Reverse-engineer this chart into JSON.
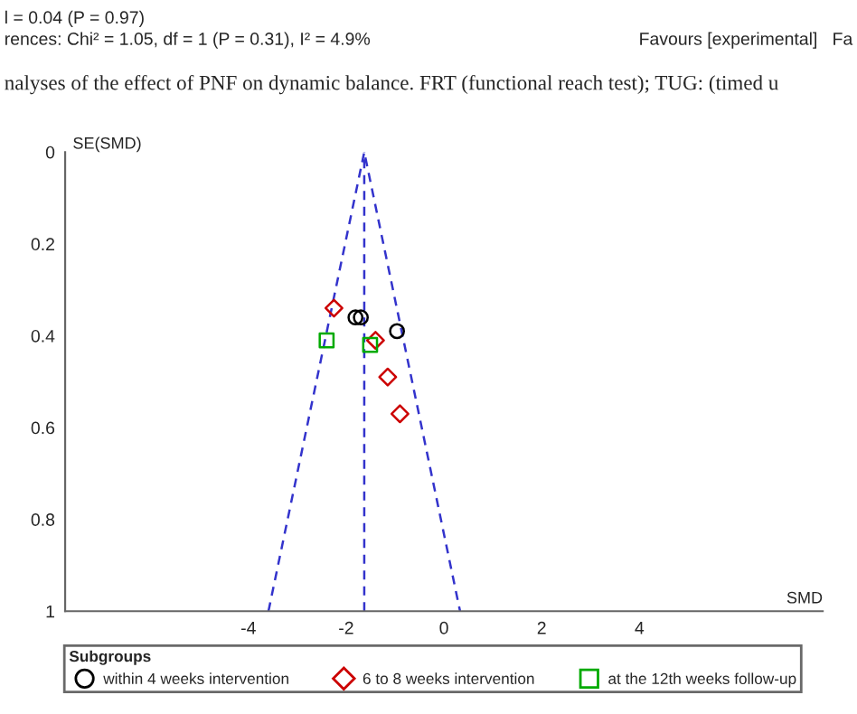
{
  "chart_data": {
    "type": "scatter",
    "xlabel": "SMD",
    "ylabel": "SE(SMD)",
    "legend_title": "Subgroups",
    "xlim": [
      -7.75,
      7.75
    ],
    "ylim": [
      1,
      0
    ],
    "xticks": [
      -4,
      -2,
      0,
      2,
      4
    ],
    "yticks": [
      0,
      0.2,
      0.4,
      0.6,
      0.8,
      1
    ],
    "grid": false,
    "legend": "bottom",
    "series": [
      {
        "name": "within 4 weeks intervention",
        "marker": "circle",
        "color": "#000000",
        "x": [
          -1.81,
          -1.7,
          -0.96
        ],
        "values": [
          0.36,
          0.36,
          0.39
        ]
      },
      {
        "name": "6 to 8 weeks intervention",
        "marker": "diamond",
        "color": "#cc0000",
        "x": [
          -2.25,
          -1.4,
          -1.15,
          -0.9
        ],
        "values": [
          0.34,
          0.41,
          0.49,
          0.57
        ]
      },
      {
        "name": "at the 12th weeks follow-up",
        "marker": "square",
        "color": "#00aa00",
        "x": [
          -2.4,
          -1.51
        ],
        "values": [
          0.41,
          0.42
        ]
      },
      {
        "type": "line",
        "line_style": "dashed",
        "color": "#3333cc",
        "x": [
          -3.59,
          -1.63,
          0.33
        ],
        "values": [
          1,
          0,
          1
        ]
      }
    ],
    "ref_lines": [
      {
        "axis": "x",
        "value": -1.63,
        "color": "#3333cc",
        "line_style": "dashed"
      }
    ],
    "annotations": [
      "l = 0.04 (P = 0.97)",
      "rences: Chi² = 1.05, df = 1 (P = 0.31), I² = 4.9%",
      "Favours [experimental]   Fa",
      "nalyses of the effect of PNF on dynamic balance. FRT (functional reach test); TUG: (timed u"
    ]
  }
}
